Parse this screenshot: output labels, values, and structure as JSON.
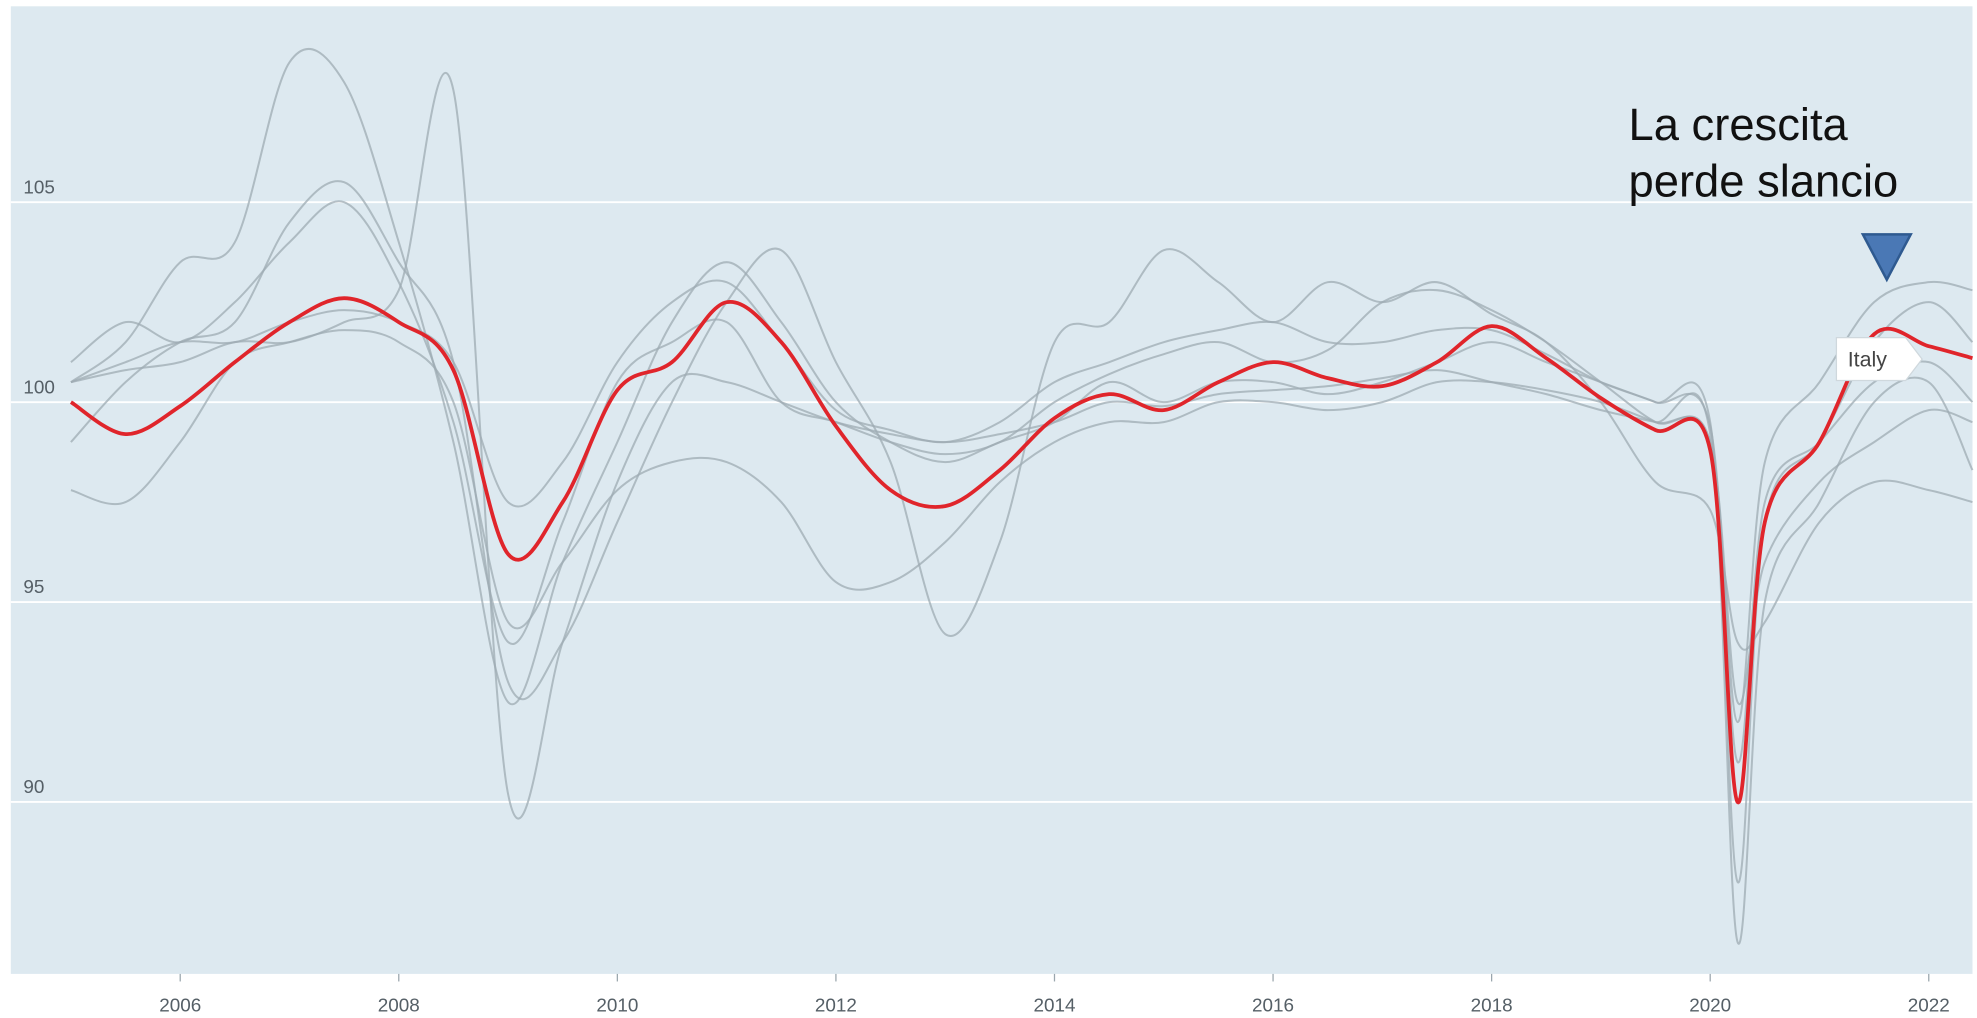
{
  "chart_data": {
    "type": "line",
    "annotation": [
      "La crescita",
      "perde slancio"
    ],
    "xlim": [
      2004.45,
      2022.4
    ],
    "xticks": [
      2006,
      2008,
      2010,
      2012,
      2014,
      2016,
      2018,
      2020,
      2022
    ],
    "ylim": [
      85.7,
      109.9
    ],
    "yticks": [
      90,
      95,
      100,
      105
    ],
    "grid": true,
    "x": [
      2005,
      2005.5,
      2006,
      2006.5,
      2007,
      2007.5,
      2008,
      2008.5,
      2009,
      2009.5,
      2010,
      2010.5,
      2011,
      2011.5,
      2012,
      2012.5,
      2013,
      2013.5,
      2014,
      2014.5,
      2015,
      2015.5,
      2016,
      2016.5,
      2017,
      2017.5,
      2018,
      2018.5,
      2019,
      2019.5,
      2020,
      2020.25,
      2020.5,
      2021,
      2021.5,
      2022,
      2022.4
    ],
    "series": [
      {
        "color": "#9dabb3",
        "values": [
          100.5,
          101.5,
          103.5,
          104,
          108.5,
          108,
          104,
          99,
          92.5,
          96,
          99,
          102,
          103.5,
          102,
          100,
          99,
          98.5,
          99,
          99.5,
          100.5,
          100,
          100.5,
          100.5,
          100.2,
          100.5,
          101,
          101.5,
          101,
          100.5,
          100,
          99.5,
          88,
          97,
          99,
          101.5,
          102.5,
          101.5
        ]
      },
      {
        "color": "#9dabb3",
        "values": [
          101,
          102,
          101.5,
          102.5,
          104,
          105,
          103,
          99.5,
          94,
          97,
          100.5,
          101.5,
          102,
          100,
          99.5,
          99,
          98.7,
          99,
          100,
          100.7,
          101.2,
          101.5,
          101,
          101.3,
          102.5,
          102.8,
          102.3,
          101.5,
          100.5,
          99.5,
          99,
          92,
          98.5,
          100.5,
          102.5,
          103,
          102.8
        ]
      },
      {
        "color": "#9dabb3",
        "values": [
          97.8,
          97.5,
          99,
          101,
          101.5,
          101.8,
          101.5,
          100,
          94.5,
          96,
          97.8,
          98.5,
          98.5,
          97.5,
          95.5,
          95.5,
          96.5,
          98,
          99,
          99.5,
          99.5,
          100,
          100,
          99.8,
          100,
          100.5,
          100.5,
          100.3,
          100,
          99.5,
          99,
          92.5,
          96,
          98,
          99,
          99.8,
          99.5
        ]
      },
      {
        "color": "#9dabb3",
        "values": [
          99,
          100.5,
          101.5,
          102,
          104.5,
          105.5,
          103.5,
          101,
          93,
          94,
          97,
          100,
          102.5,
          103.8,
          101,
          98.5,
          94.2,
          96.5,
          101.5,
          102,
          103.8,
          103,
          102,
          103,
          102.5,
          103,
          102.2,
          101.5,
          100,
          98,
          97.3,
          94,
          94.5,
          97,
          98,
          97.8,
          97.5
        ]
      },
      {
        "color": "#9dabb3",
        "values": [
          100.5,
          101,
          101.5,
          101.5,
          102,
          102.3,
          102,
          101,
          97.5,
          98.5,
          101,
          102.5,
          103,
          101.5,
          99.8,
          99.3,
          99,
          99.5,
          100.5,
          101,
          101.5,
          101.8,
          102,
          101.5,
          101.5,
          101.8,
          101.8,
          101.2,
          100.5,
          100,
          99.4,
          91,
          97.5,
          99,
          100.5,
          101,
          100
        ]
      },
      {
        "color": "#9dabb3",
        "values": [
          100.5,
          100.8,
          101,
          101.5,
          101.5,
          102,
          102.8,
          107.8,
          90.2,
          94,
          98,
          100.5,
          100.5,
          100,
          99.5,
          99.2,
          99,
          99.2,
          99.5,
          100,
          99.9,
          100.2,
          100.3,
          100.4,
          100.6,
          100.8,
          100.5,
          100.2,
          99.8,
          99.5,
          99.2,
          86.5,
          95,
          97.5,
          100,
          100.5,
          98.3
        ]
      },
      {
        "name": "Italy",
        "color": "#e0252b",
        "values": [
          100,
          99.2,
          99.9,
          101,
          102,
          102.6,
          102,
          100.8,
          96.2,
          97.5,
          100.3,
          101,
          102.5,
          101.5,
          99.4,
          97.8,
          97.4,
          98.3,
          99.6,
          100.2,
          99.8,
          100.5,
          101,
          100.6,
          100.4,
          101,
          101.9,
          101.1,
          100.1,
          99.3,
          98.8,
          90,
          97,
          99,
          101.7,
          101.4,
          101.1
        ]
      }
    ]
  }
}
